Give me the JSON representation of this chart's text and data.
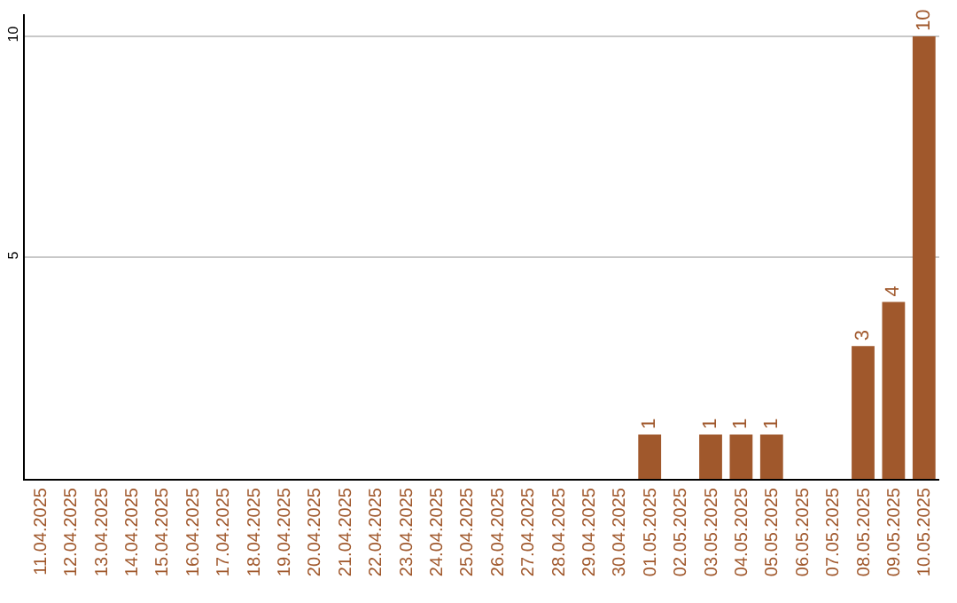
{
  "chart_data": {
    "type": "bar",
    "categories": [
      "11.04.2025",
      "12.04.2025",
      "13.04.2025",
      "14.04.2025",
      "15.04.2025",
      "16.04.2025",
      "17.04.2025",
      "18.04.2025",
      "19.04.2025",
      "20.04.2025",
      "21.04.2025",
      "22.04.2025",
      "23.04.2025",
      "24.04.2025",
      "25.04.2025",
      "26.04.2025",
      "27.04.2025",
      "28.04.2025",
      "29.04.2025",
      "30.04.2025",
      "01.05.2025",
      "02.05.2025",
      "03.05.2025",
      "04.05.2025",
      "05.05.2025",
      "06.05.2025",
      "07.05.2025",
      "08.05.2025",
      "09.05.2025",
      "10.05.2025"
    ],
    "values": [
      0,
      0,
      0,
      0,
      0,
      0,
      0,
      0,
      0,
      0,
      0,
      0,
      0,
      0,
      0,
      0,
      0,
      0,
      0,
      0,
      1,
      0,
      1,
      1,
      1,
      0,
      0,
      3,
      4,
      10
    ],
    "value_labels": [
      null,
      null,
      null,
      null,
      null,
      null,
      null,
      null,
      null,
      null,
      null,
      null,
      null,
      null,
      null,
      null,
      null,
      null,
      null,
      null,
      "1",
      null,
      "1",
      "1",
      "1",
      null,
      null,
      "3",
      "4",
      "10"
    ],
    "color": "#a0582c",
    "ylim": [
      0,
      10.5
    ],
    "yticks": [
      5,
      10
    ],
    "grid": "y",
    "legend": false
  }
}
